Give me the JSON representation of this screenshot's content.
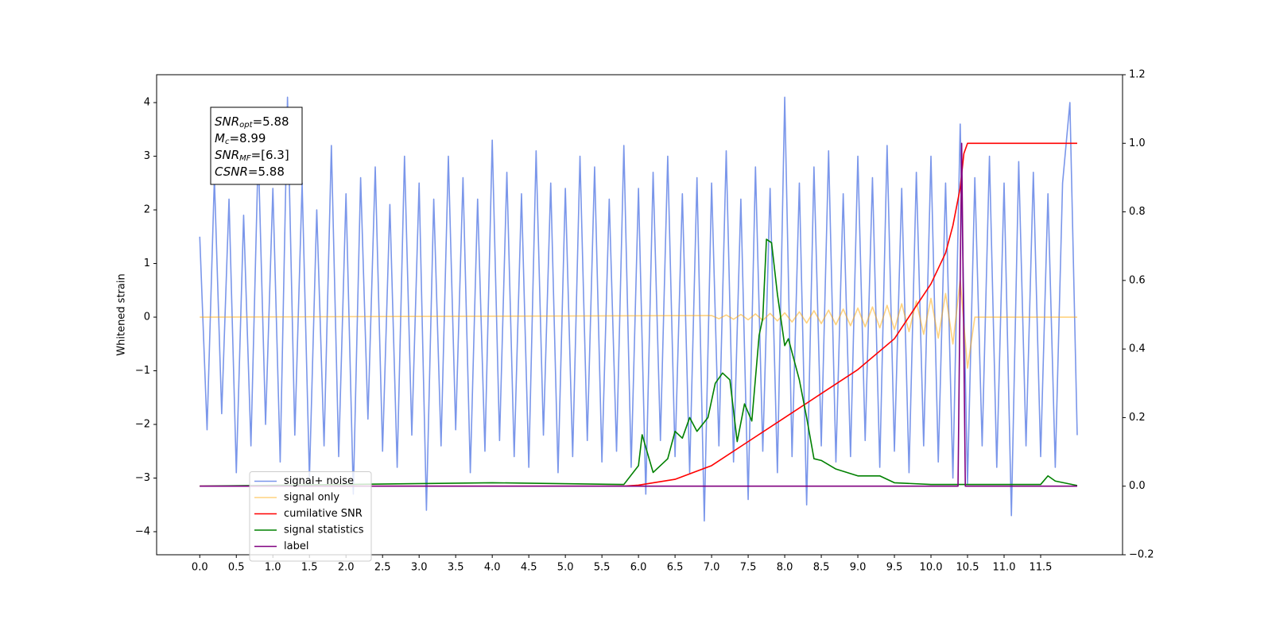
{
  "chart_data": {
    "type": "line",
    "ylabel": "Whitened strain",
    "xlim": [
      -0.59,
      12.62
    ],
    "ylim": [
      -4.43,
      4.52
    ],
    "y2lim": [
      -0.2,
      1.2
    ],
    "xticks": [
      {
        "value": 0,
        "label": "0.0"
      },
      {
        "value": 0.5,
        "label": "0.5"
      },
      {
        "value": 1,
        "label": "1.0"
      },
      {
        "value": 1.5,
        "label": "1.5"
      },
      {
        "value": 2,
        "label": "2.0"
      },
      {
        "value": 2.5,
        "label": "2.5"
      },
      {
        "value": 3,
        "label": "3.0"
      },
      {
        "value": 3.5,
        "label": "3.5"
      },
      {
        "value": 4,
        "label": "4.0"
      },
      {
        "value": 4.5,
        "label": "4.5"
      },
      {
        "value": 5,
        "label": "5.0"
      },
      {
        "value": 5.5,
        "label": "5.5"
      },
      {
        "value": 6,
        "label": "6.0"
      },
      {
        "value": 6.5,
        "label": "6.5"
      },
      {
        "value": 7,
        "label": "7.0"
      },
      {
        "value": 7.5,
        "label": "7.5"
      },
      {
        "value": 8,
        "label": "8.0"
      },
      {
        "value": 8.5,
        "label": "8.5"
      },
      {
        "value": 9,
        "label": "9.0"
      },
      {
        "value": 9.5,
        "label": "9.5"
      },
      {
        "value": 10,
        "label": "10.0"
      },
      {
        "value": 10.5,
        "label": "10.5"
      },
      {
        "value": 11,
        "label": "11.0"
      },
      {
        "value": 11.5,
        "label": "11.5"
      }
    ],
    "yticks": [
      {
        "value": -4,
        "label": "−4"
      },
      {
        "value": -3,
        "label": "−3"
      },
      {
        "value": -2,
        "label": "−2"
      },
      {
        "value": -1,
        "label": "−1"
      },
      0,
      1,
      2,
      3,
      4
    ],
    "y2ticks": [
      {
        "value": -0.2,
        "label": "−0.2"
      },
      {
        "value": 0,
        "label": "0.0"
      },
      {
        "value": 0.2,
        "label": "0.2"
      },
      {
        "value": 0.4,
        "label": "0.4"
      },
      {
        "value": 0.6,
        "label": "0.6"
      },
      {
        "value": 0.8,
        "label": "0.8"
      },
      {
        "value": 1,
        "label": "1.0"
      },
      {
        "value": 1.2,
        "label": "1.2"
      }
    ],
    "grid": false,
    "legend": "lower left",
    "annotation": [
      {
        "symbol": "SNR",
        "sub": "opt",
        "text": "=5.88"
      },
      {
        "symbol": "M",
        "sub": "c",
        "text": "=8.99"
      },
      {
        "symbol": "SNR",
        "sub": "MF",
        "text": "=[6.3]"
      },
      {
        "symbol": "CSNR",
        "sub": "",
        "text": "=5.88"
      }
    ],
    "series": [
      {
        "name": "signal+ noise",
        "color": "#4169e1",
        "alpha": 0.7,
        "x": [
          0,
          0.1,
          0.2,
          0.3,
          0.4,
          0.5,
          0.6,
          0.7,
          0.8,
          0.9,
          1,
          1.1,
          1.2,
          1.3,
          1.4,
          1.5,
          1.6,
          1.7,
          1.8,
          1.9,
          2,
          2.1,
          2.2,
          2.3,
          2.4,
          2.5,
          2.6,
          2.7,
          2.8,
          2.9,
          3,
          3.1,
          3.2,
          3.3,
          3.4,
          3.5,
          3.6,
          3.7,
          3.8,
          3.9,
          4,
          4.1,
          4.2,
          4.3,
          4.4,
          4.5,
          4.6,
          4.7,
          4.8,
          4.9,
          5,
          5.1,
          5.2,
          5.3,
          5.4,
          5.5,
          5.6,
          5.7,
          5.8,
          5.9,
          6,
          6.1,
          6.2,
          6.3,
          6.4,
          6.5,
          6.6,
          6.7,
          6.8,
          6.9,
          7,
          7.1,
          7.2,
          7.3,
          7.4,
          7.5,
          7.6,
          7.7,
          7.8,
          7.9,
          8,
          8.1,
          8.2,
          8.3,
          8.4,
          8.5,
          8.6,
          8.7,
          8.8,
          8.9,
          9,
          9.1,
          9.2,
          9.3,
          9.4,
          9.5,
          9.6,
          9.7,
          9.8,
          9.9,
          10,
          10.1,
          10.2,
          10.3,
          10.4,
          10.5,
          10.6,
          10.7,
          10.8,
          10.9,
          11,
          11.1,
          11.2,
          11.3,
          11.4,
          11.5,
          11.6,
          11.7,
          11.8,
          11.9,
          12
        ],
        "values": [
          1.5,
          -2.1,
          2.6,
          -1.8,
          2.2,
          -2.9,
          1.9,
          -2.4,
          3.1,
          -2.0,
          2.4,
          -2.7,
          4.1,
          -2.2,
          2.5,
          -3.0,
          2.0,
          -2.4,
          3.2,
          -2.6,
          2.3,
          -3.3,
          2.6,
          -1.9,
          2.8,
          -2.5,
          2.1,
          -2.8,
          3.0,
          -2.2,
          2.5,
          -3.6,
          2.2,
          -2.4,
          3.0,
          -2.1,
          2.6,
          -2.9,
          2.2,
          -2.5,
          3.3,
          -2.3,
          2.7,
          -2.6,
          2.3,
          -2.8,
          3.1,
          -2.2,
          2.5,
          -2.9,
          2.4,
          -2.6,
          3.0,
          -2.3,
          2.8,
          -2.7,
          2.2,
          -2.5,
          3.2,
          -2.8,
          2.4,
          -3.3,
          2.7,
          -2.3,
          3.0,
          -2.6,
          2.3,
          -2.9,
          2.6,
          -3.8,
          2.5,
          -2.4,
          3.1,
          -2.7,
          2.2,
          -3.4,
          2.8,
          -2.5,
          2.4,
          -2.9,
          4.1,
          -2.6,
          2.5,
          -3.5,
          2.8,
          -2.4,
          3.1,
          -2.7,
          2.3,
          -2.6,
          3.0,
          -2.3,
          2.6,
          -2.8,
          3.2,
          -2.5,
          2.4,
          -2.9,
          2.7,
          -2.4,
          3.0,
          -2.7,
          2.5,
          -3.0,
          3.6,
          -3.1,
          2.6,
          -2.4,
          3.0,
          -2.8,
          2.5,
          -3.7,
          2.9,
          -2.4,
          2.7,
          -2.6,
          2.3,
          -2.8,
          2.5,
          4.0,
          -2.2
        ]
      },
      {
        "name": "signal only",
        "color": "#ffa500",
        "alpha": 0.5,
        "x": [
          0,
          7,
          7.1,
          7.2,
          7.3,
          7.4,
          7.5,
          7.6,
          7.7,
          7.8,
          7.9,
          8,
          8.1,
          8.2,
          8.3,
          8.4,
          8.5,
          8.6,
          8.7,
          8.8,
          8.9,
          9,
          9.1,
          9.2,
          9.3,
          9.4,
          9.5,
          9.6,
          9.7,
          9.8,
          9.9,
          10,
          10.1,
          10.2,
          10.3,
          10.4,
          10.5,
          10.6,
          12
        ],
        "values": [
          0,
          0.03,
          -0.03,
          0.04,
          -0.04,
          0.05,
          -0.05,
          0.06,
          -0.06,
          0.07,
          -0.07,
          0.08,
          -0.09,
          0.1,
          -0.11,
          0.12,
          -0.12,
          0.13,
          -0.14,
          0.15,
          -0.16,
          0.17,
          -0.18,
          0.19,
          -0.2,
          0.22,
          -0.23,
          0.25,
          -0.27,
          0.3,
          -0.32,
          0.35,
          -0.39,
          0.44,
          -0.5,
          0.7,
          -0.95,
          0,
          0
        ]
      },
      {
        "name": "cumilative SNR",
        "color": "#ff0000",
        "axis": "y2",
        "x": [
          0,
          5.8,
          6,
          6.5,
          7,
          7.5,
          8,
          8.5,
          9,
          9.5,
          10,
          10.2,
          10.3,
          10.4,
          10.45,
          10.5,
          12
        ],
        "values": [
          0,
          0,
          0.003,
          0.02,
          0.06,
          0.13,
          0.2,
          0.27,
          0.34,
          0.43,
          0.59,
          0.68,
          0.76,
          0.87,
          0.97,
          1,
          1
        ]
      },
      {
        "name": "signal statistics",
        "color": "#008000",
        "axis": "y2",
        "x": [
          0,
          4,
          5.8,
          6,
          6.05,
          6.2,
          6.4,
          6.5,
          6.6,
          6.7,
          6.8,
          6.95,
          7.05,
          7.15,
          7.25,
          7.35,
          7.45,
          7.55,
          7.65,
          7.7,
          7.75,
          7.82,
          7.9,
          8,
          8.05,
          8.2,
          8.3,
          8.4,
          8.5,
          8.7,
          9,
          9.3,
          9.5,
          10,
          11.5,
          11.6,
          11.7,
          12
        ],
        "values": [
          0,
          0.01,
          0.005,
          0.06,
          0.15,
          0.04,
          0.08,
          0.16,
          0.14,
          0.2,
          0.16,
          0.2,
          0.3,
          0.33,
          0.31,
          0.13,
          0.24,
          0.19,
          0.44,
          0.49,
          0.72,
          0.71,
          0.56,
          0.41,
          0.43,
          0.31,
          0.2,
          0.08,
          0.075,
          0.05,
          0.03,
          0.03,
          0.01,
          0.005,
          0.005,
          0.03,
          0.015,
          0.002
        ]
      },
      {
        "name": "label",
        "color": "#800080",
        "axis": "y2",
        "x": [
          0,
          10.37,
          10.42,
          10.47,
          12
        ],
        "values": [
          0,
          0,
          1,
          0,
          0
        ]
      }
    ]
  }
}
